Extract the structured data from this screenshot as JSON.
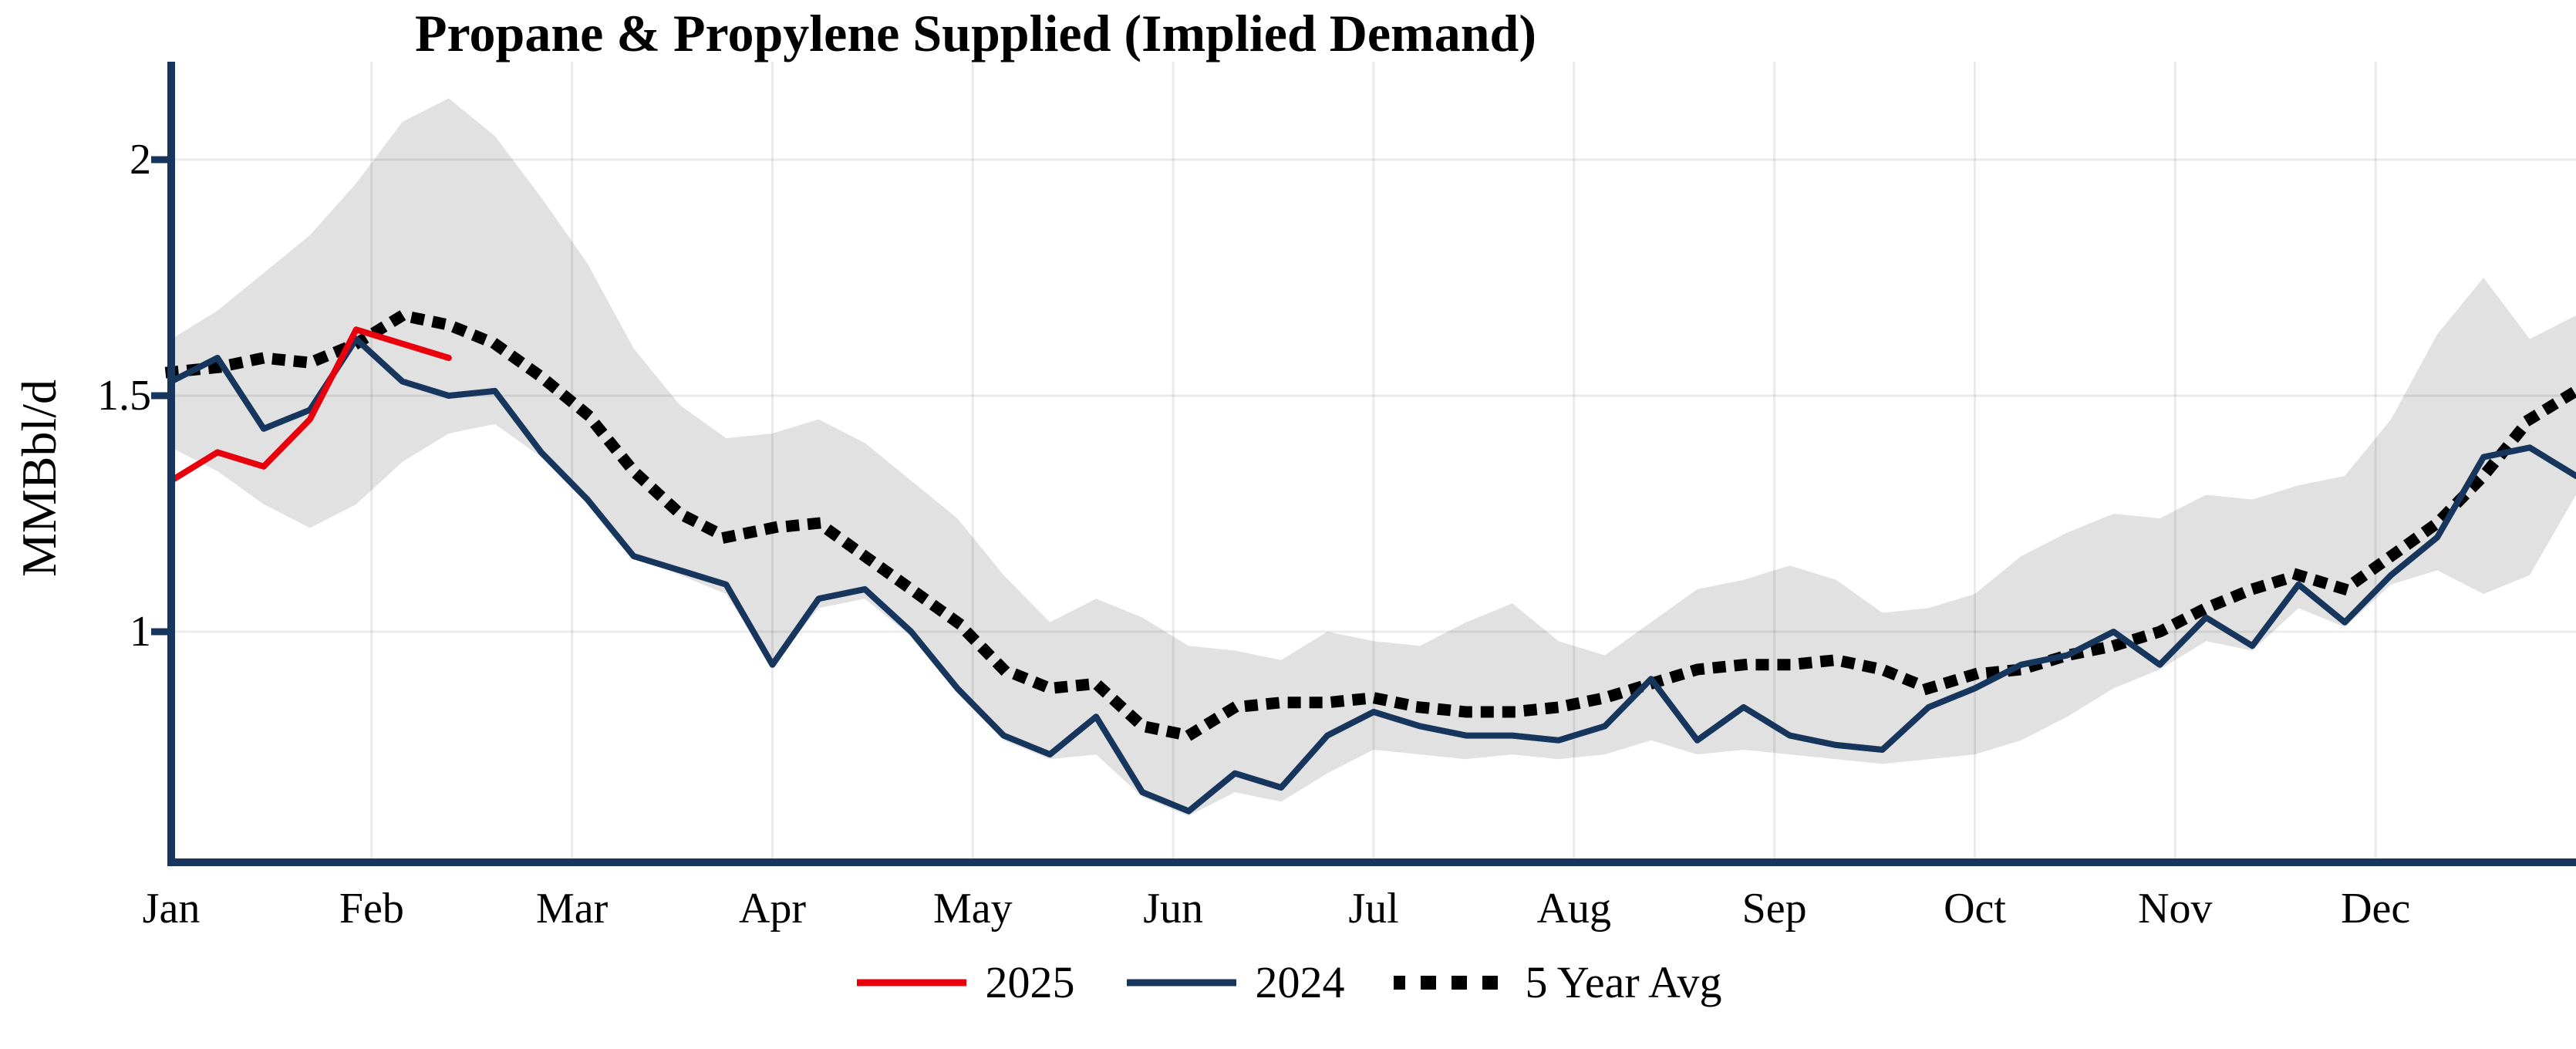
{
  "title": "Propane & Propylene Supplied (Implied Demand)",
  "y_axis": {
    "label": "MMBbl/d",
    "tick_labels": [
      "2",
      "1.5",
      "1"
    ],
    "tick_values": [
      2,
      1.5,
      1
    ]
  },
  "x_axis": {
    "tick_labels": [
      "Jan",
      "Feb",
      "Mar",
      "Apr",
      "May",
      "Jun",
      "Jul",
      "Aug",
      "Sep",
      "Oct",
      "Nov",
      "Dec"
    ]
  },
  "legend": [
    {
      "label": "2025",
      "color": "#e8000d",
      "style": "solid"
    },
    {
      "label": "2024",
      "color": "#17365d",
      "style": "solid"
    },
    {
      "label": "5 Year Avg",
      "color": "#000000",
      "style": "dotted"
    }
  ],
  "colors": {
    "axis": "#17365d",
    "grid": "rgba(0,0,0,0.08)",
    "band": "#e1e1e1"
  },
  "chart_data": {
    "type": "line",
    "title": "Propane & Propylene Supplied (Implied Demand)",
    "ylabel": "MMBbl/d",
    "x_unit": "week of year (index 0-52)",
    "x_tick_labels": [
      "Jan",
      "Feb",
      "Mar",
      "Apr",
      "May",
      "Jun",
      "Jul",
      "Aug",
      "Sep",
      "Oct",
      "Nov",
      "Dec"
    ],
    "ylim": [
      0.51,
      2.21
    ],
    "grid": true,
    "legend_position": "bottom",
    "band": {
      "name": "5 Year Range",
      "color": "#e1e1e1",
      "upper": [
        1.62,
        1.68,
        1.76,
        1.84,
        1.95,
        2.08,
        2.13,
        2.05,
        1.92,
        1.78,
        1.6,
        1.48,
        1.41,
        1.42,
        1.45,
        1.4,
        1.32,
        1.24,
        1.12,
        1.02,
        1.07,
        1.03,
        0.97,
        0.96,
        0.94,
        1.0,
        0.98,
        0.97,
        1.02,
        1.06,
        0.98,
        0.95,
        1.02,
        1.09,
        1.11,
        1.14,
        1.11,
        1.04,
        1.05,
        1.08,
        1.16,
        1.21,
        1.25,
        1.24,
        1.29,
        1.28,
        1.31,
        1.33,
        1.45,
        1.63,
        1.75,
        1.62,
        1.67
      ],
      "lower": [
        1.39,
        1.34,
        1.27,
        1.22,
        1.27,
        1.36,
        1.42,
        1.44,
        1.37,
        1.28,
        1.16,
        1.12,
        1.08,
        0.93,
        1.05,
        1.07,
        0.99,
        0.87,
        0.77,
        0.73,
        0.74,
        0.65,
        0.61,
        0.66,
        0.64,
        0.7,
        0.75,
        0.74,
        0.73,
        0.74,
        0.73,
        0.74,
        0.77,
        0.74,
        0.75,
        0.74,
        0.73,
        0.72,
        0.73,
        0.74,
        0.77,
        0.82,
        0.88,
        0.92,
        0.98,
        0.96,
        1.05,
        1.01,
        1.1,
        1.13,
        1.08,
        1.12,
        1.29
      ]
    },
    "series": [
      {
        "name": "2025",
        "color": "#e8000d",
        "style": "solid",
        "values": [
          1.32,
          1.38,
          1.35,
          1.45,
          1.64,
          1.61,
          1.58
        ]
      },
      {
        "name": "2024",
        "color": "#17365d",
        "style": "solid",
        "values": [
          1.53,
          1.58,
          1.43,
          1.47,
          1.62,
          1.53,
          1.5,
          1.51,
          1.38,
          1.28,
          1.16,
          1.13,
          1.1,
          0.93,
          1.07,
          1.09,
          1.0,
          0.88,
          0.78,
          0.74,
          0.82,
          0.66,
          0.62,
          0.7,
          0.67,
          0.78,
          0.83,
          0.8,
          0.78,
          0.78,
          0.77,
          0.8,
          0.9,
          0.77,
          0.84,
          0.78,
          0.76,
          0.75,
          0.84,
          0.88,
          0.93,
          0.95,
          1.0,
          0.93,
          1.03,
          0.97,
          1.1,
          1.02,
          1.12,
          1.2,
          1.37,
          1.39,
          1.33
        ]
      },
      {
        "name": "5 Year Avg",
        "color": "#000000",
        "style": "dotted",
        "values": [
          1.55,
          1.56,
          1.58,
          1.57,
          1.61,
          1.67,
          1.65,
          1.61,
          1.54,
          1.46,
          1.34,
          1.25,
          1.2,
          1.22,
          1.23,
          1.16,
          1.09,
          1.02,
          0.92,
          0.88,
          0.89,
          0.8,
          0.78,
          0.84,
          0.85,
          0.85,
          0.86,
          0.84,
          0.83,
          0.83,
          0.84,
          0.86,
          0.89,
          0.92,
          0.93,
          0.93,
          0.94,
          0.92,
          0.88,
          0.91,
          0.92,
          0.95,
          0.97,
          1.0,
          1.05,
          1.09,
          1.12,
          1.09,
          1.16,
          1.23,
          1.33,
          1.45,
          1.51
        ]
      }
    ]
  }
}
